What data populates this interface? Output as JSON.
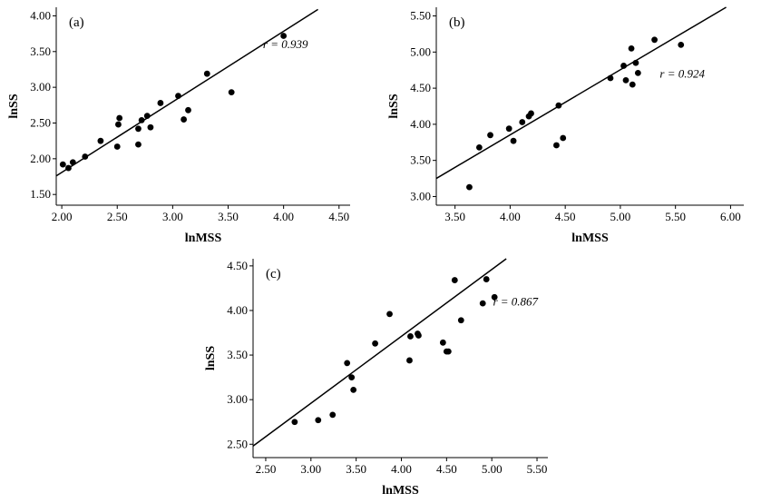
{
  "chart_data": [
    {
      "type": "scatter",
      "panel_label": "(a)",
      "xlabel": "lnMSS",
      "ylabel": "lnSS",
      "annotation": "r = 0.939",
      "xlim": [
        1.95,
        4.6
      ],
      "ylim": [
        1.35,
        4.12
      ],
      "xticks": [
        "2.00",
        "2.50",
        "3.00",
        "3.50",
        "4.00",
        "4.50"
      ],
      "yticks": [
        "1.50",
        "2.00",
        "2.50",
        "3.00",
        "3.50",
        "4.00"
      ],
      "fit_line": {
        "x": [
          1.95,
          4.31
        ],
        "y": [
          1.76,
          4.09
        ]
      },
      "points": [
        [
          2.01,
          1.92
        ],
        [
          2.06,
          1.87
        ],
        [
          2.1,
          1.95
        ],
        [
          2.21,
          2.03
        ],
        [
          2.35,
          2.25
        ],
        [
          2.5,
          2.17
        ],
        [
          2.51,
          2.48
        ],
        [
          2.52,
          2.57
        ],
        [
          2.69,
          2.2
        ],
        [
          2.69,
          2.42
        ],
        [
          2.72,
          2.54
        ],
        [
          2.77,
          2.6
        ],
        [
          2.8,
          2.44
        ],
        [
          2.89,
          2.78
        ],
        [
          3.05,
          2.88
        ],
        [
          3.1,
          2.55
        ],
        [
          3.14,
          2.68
        ],
        [
          3.31,
          3.19
        ],
        [
          3.53,
          2.93
        ],
        [
          4.0,
          3.72
        ]
      ]
    },
    {
      "type": "scatter",
      "panel_label": "(b)",
      "xlabel": "lnMSS",
      "ylabel": "lnSS",
      "annotation": "r = 0.924",
      "xlim": [
        3.33,
        6.12
      ],
      "ylim": [
        2.88,
        5.62
      ],
      "xticks": [
        "3.50",
        "4.00",
        "4.50",
        "5.00",
        "5.50",
        "6.00"
      ],
      "yticks": [
        "3.00",
        "3.50",
        "4.00",
        "4.50",
        "5.00",
        "5.50"
      ],
      "fit_line": {
        "x": [
          3.33,
          5.96
        ],
        "y": [
          3.25,
          5.62
        ]
      },
      "points": [
        [
          3.63,
          3.13
        ],
        [
          3.72,
          3.68
        ],
        [
          3.82,
          3.85
        ],
        [
          3.99,
          3.94
        ],
        [
          4.03,
          3.77
        ],
        [
          4.11,
          4.03
        ],
        [
          4.17,
          4.11
        ],
        [
          4.19,
          4.15
        ],
        [
          4.42,
          3.71
        ],
        [
          4.44,
          4.26
        ],
        [
          4.48,
          3.81
        ],
        [
          4.91,
          4.64
        ],
        [
          5.03,
          4.81
        ],
        [
          5.05,
          4.61
        ],
        [
          5.1,
          5.05
        ],
        [
          5.11,
          4.55
        ],
        [
          5.14,
          4.85
        ],
        [
          5.16,
          4.71
        ],
        [
          5.31,
          5.17
        ],
        [
          5.55,
          5.1
        ]
      ]
    },
    {
      "type": "scatter",
      "panel_label": "(c)",
      "xlabel": "lnMSS",
      "ylabel": "lnSS",
      "annotation": "r = 0.867",
      "xlim": [
        2.36,
        5.62
      ],
      "ylim": [
        2.35,
        4.58
      ],
      "xticks": [
        "2.50",
        "3.00",
        "3.50",
        "4.00",
        "4.50",
        "5.00",
        "5.50"
      ],
      "yticks": [
        "2.50",
        "3.00",
        "3.50",
        "4.00",
        "4.50"
      ],
      "fit_line": {
        "x": [
          2.36,
          5.16
        ],
        "y": [
          2.48,
          4.58
        ]
      },
      "points": [
        [
          2.82,
          2.75
        ],
        [
          3.08,
          2.77
        ],
        [
          3.24,
          2.83
        ],
        [
          3.4,
          3.41
        ],
        [
          3.45,
          3.25
        ],
        [
          3.47,
          3.11
        ],
        [
          3.71,
          3.63
        ],
        [
          3.87,
          3.96
        ],
        [
          4.09,
          3.44
        ],
        [
          4.1,
          3.71
        ],
        [
          4.18,
          3.74
        ],
        [
          4.19,
          3.72
        ],
        [
          4.46,
          3.64
        ],
        [
          4.5,
          3.54
        ],
        [
          4.52,
          3.54
        ],
        [
          4.59,
          4.34
        ],
        [
          4.66,
          3.89
        ],
        [
          4.9,
          4.08
        ],
        [
          4.94,
          4.35
        ],
        [
          5.03,
          4.15
        ]
      ]
    }
  ]
}
